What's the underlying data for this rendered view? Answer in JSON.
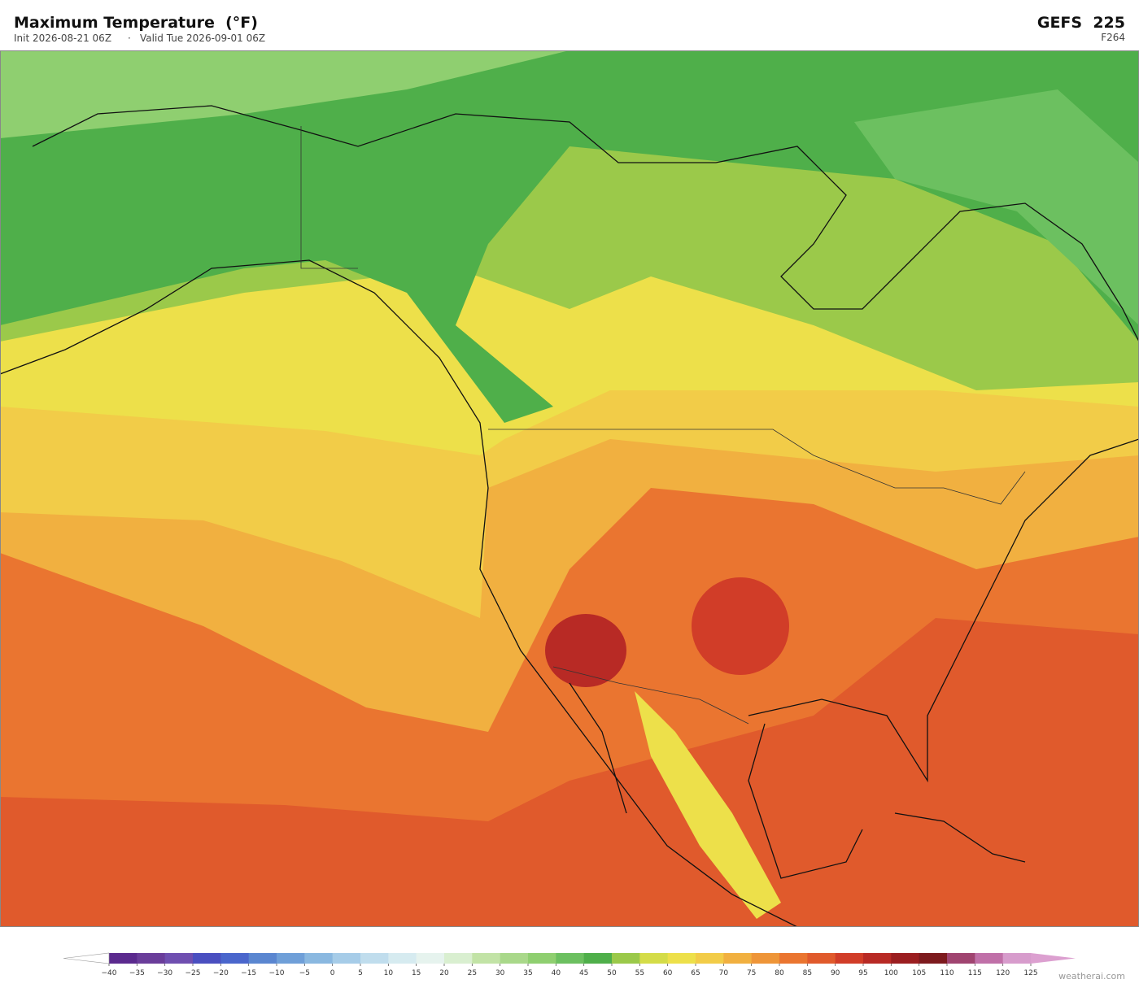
{
  "header": {
    "title": "Maximum Temperature  (°F)",
    "init": "Init 2026-08-21 06Z",
    "valid": "Valid Tue 2026-09-01 06Z",
    "model": "GEFS  225",
    "forecast_hour": "F264"
  },
  "colorbar": {
    "ticks": [
      {
        "value": -40,
        "label": "−40"
      },
      {
        "value": -35,
        "label": "−35"
      },
      {
        "value": -30,
        "label": "−30"
      },
      {
        "value": -25,
        "label": "−25"
      },
      {
        "value": -20,
        "label": "−20"
      },
      {
        "value": -15,
        "label": "−15"
      },
      {
        "value": -10,
        "label": "−10"
      },
      {
        "value": -5,
        "label": "−5"
      },
      0,
      5,
      10,
      15,
      20,
      25,
      30,
      35,
      40,
      45,
      50,
      55,
      60,
      65,
      70,
      75,
      80,
      85,
      90,
      95,
      100,
      105,
      110,
      115,
      120,
      125
    ],
    "colors": [
      "#5b2a8e",
      "#6a3d9a",
      "#6f4fb0",
      "#4a4fc0",
      "#4a66cc",
      "#5a86d0",
      "#6f9fd8",
      "#8ab8e0",
      "#a6cce8",
      "#c0dded",
      "#d6ebf0",
      "#e6f3ee",
      "#d9efd0",
      "#c2e3a6",
      "#a9d88a",
      "#8fcf70",
      "#6cc060",
      "#4faf4a",
      "#9bc94a",
      "#d4dc48",
      "#ede04a",
      "#f2cc48",
      "#f1b040",
      "#ee9538",
      "#ea7530",
      "#e05a2c",
      "#d13d28",
      "#b82a25",
      "#9b1e20",
      "#7d1a1e",
      "#a04470",
      "#c070a8",
      "#d79ccc"
    ],
    "under_color": "#ffffff",
    "over_color": "#dca0d0"
  },
  "footer": {
    "credit": "weatherai.com"
  }
}
